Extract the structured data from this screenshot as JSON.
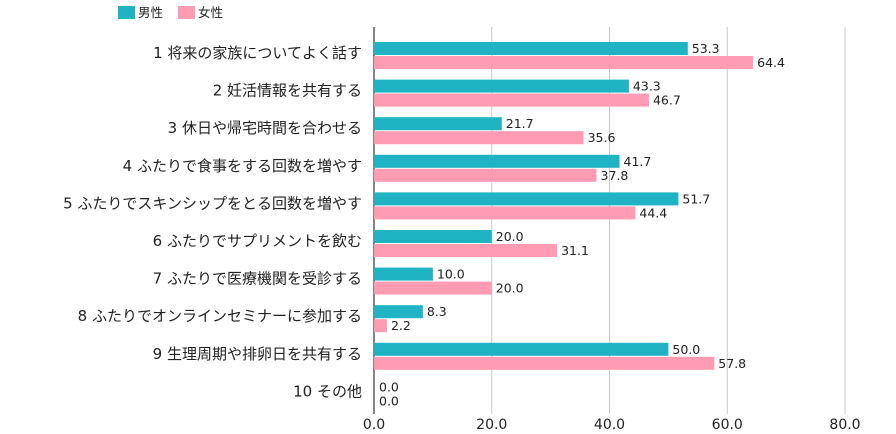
{
  "chart_data": {
    "type": "bar",
    "orientation": "horizontal",
    "categories": [
      "1 将来の家族についてよく話す",
      "2 妊活情報を共有する",
      "3 休日や帰宅時間を合わせる",
      "4 ふたりで食事をする回数を増やす",
      "5 ふたりでスキンシップをとる回数を増やす",
      "6 ふたりでサプリメントを飲む",
      "7 ふたりで医療機関を受診する",
      "8 ふたりでオンラインセミナーに参加する",
      "9 生理周期や排卵日を共有する",
      "10 その他"
    ],
    "series": [
      {
        "name": "男性",
        "color": "#1fb3c4",
        "values": [
          53.3,
          43.3,
          21.7,
          41.7,
          51.7,
          20.0,
          10.0,
          8.3,
          50.0,
          0.0
        ]
      },
      {
        "name": "女性",
        "color": "#ff9bb3",
        "values": [
          64.4,
          46.7,
          35.6,
          37.8,
          44.4,
          31.1,
          20.0,
          2.2,
          57.8,
          0.0
        ]
      }
    ],
    "value_labels": [
      [
        "53.3",
        "43.3",
        "21.7",
        "41.7",
        "51.7",
        "20.0",
        "10.0",
        "8.3",
        "50.0",
        "0.0"
      ],
      [
        "64.4",
        "46.7",
        "35.6",
        "37.8",
        "44.4",
        "31.1",
        "20.0",
        "2.2",
        "57.8",
        "0.0"
      ]
    ],
    "xlim": [
      0,
      80
    ],
    "xticks": [
      "0.0",
      "20.0",
      "40.0",
      "60.0",
      "80.0"
    ],
    "grid": true,
    "legend_position": "top-left"
  }
}
